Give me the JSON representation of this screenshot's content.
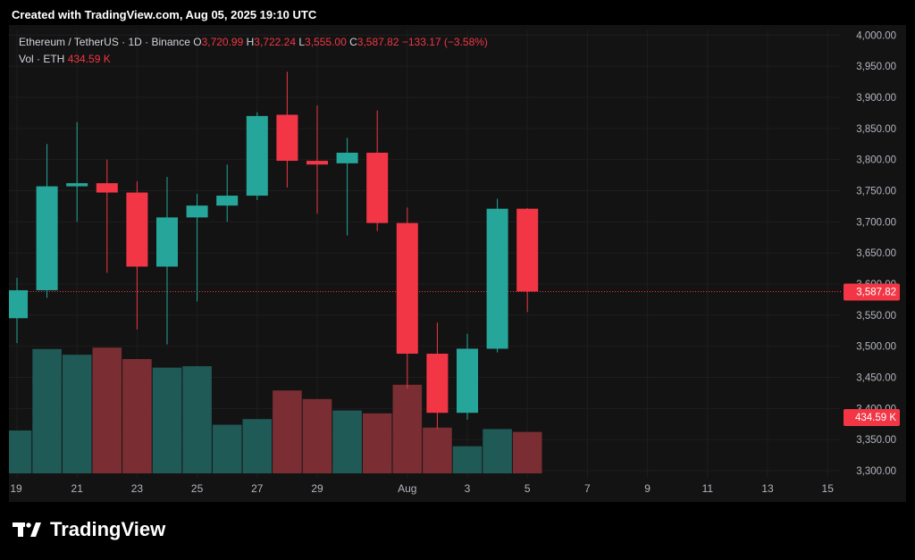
{
  "watermark": {
    "created": "Created with TradingView.com, Aug 05, 2025 19:10 UTC"
  },
  "legend": {
    "symbol": "Ethereum / TetherUS · 1D · Binance",
    "o_label": "O",
    "o_value": "3,720.99",
    "h_label": "H",
    "h_value": "3,722.24",
    "l_label": "L",
    "l_value": "3,555.00",
    "c_label": "C",
    "c_value": "3,587.82",
    "change": "−133.17 (−3.58%)",
    "vol_label": "Vol · ETH",
    "vol_value": "434.59 K"
  },
  "brand": {
    "name": "TradingView"
  },
  "colors": {
    "up": "#26a69a",
    "down": "#f23645",
    "vol_up": "#1f5a56",
    "vol_down": "#7a2e33",
    "badge": "#f23645",
    "grid": "#1e1e1e",
    "text": "#b2b5be"
  },
  "chart_data": {
    "type": "candlestick",
    "symbol": "ETH/USDT",
    "interval": "1D",
    "y_axis": {
      "ylim": [
        3300,
        4000
      ],
      "ticks": [
        4000,
        3950,
        3900,
        3850,
        3800,
        3750,
        3700,
        3650,
        3600,
        3550,
        3500,
        3450,
        3400,
        3350,
        3300
      ],
      "tick_labels": [
        "4,000.00",
        "3,950.00",
        "3,900.00",
        "3,850.00",
        "3,800.00",
        "3,750.00",
        "3,700.00",
        "3,650.00",
        "3,600.00",
        "3,550.00",
        "3,500.00",
        "3,450.00",
        "3,400.00",
        "3,350.00",
        "3,300.00"
      ]
    },
    "x_axis": {
      "tick_labels": [
        "19",
        "21",
        "23",
        "25",
        "27",
        "29",
        "Aug",
        "3",
        "5",
        "7",
        "9",
        "11",
        "13",
        "15"
      ],
      "tick_day_index": [
        0,
        2,
        4,
        6,
        8,
        10,
        13,
        15,
        17,
        19,
        21,
        23,
        25,
        27
      ]
    },
    "candles": [
      {
        "date": "Jul 19",
        "o": 3545,
        "h": 3610,
        "l": 3505,
        "c": 3590,
        "vol": 30
      },
      {
        "date": "Jul 20",
        "o": 3590,
        "h": 3825,
        "l": 3578,
        "c": 3757,
        "vol": 87
      },
      {
        "date": "Jul 21",
        "o": 3757,
        "h": 3860,
        "l": 3700,
        "c": 3762,
        "vol": 83
      },
      {
        "date": "Jul 22",
        "o": 3762,
        "h": 3800,
        "l": 3618,
        "c": 3747,
        "vol": 88
      },
      {
        "date": "Jul 23",
        "o": 3747,
        "h": 3765,
        "l": 3527,
        "c": 3628,
        "vol": 80
      },
      {
        "date": "Jul 24",
        "o": 3628,
        "h": 3772,
        "l": 3503,
        "c": 3707,
        "vol": 74
      },
      {
        "date": "Jul 25",
        "o": 3707,
        "h": 3745,
        "l": 3572,
        "c": 3726,
        "vol": 75
      },
      {
        "date": "Jul 26",
        "o": 3726,
        "h": 3792,
        "l": 3700,
        "c": 3742,
        "vol": 34
      },
      {
        "date": "Jul 27",
        "o": 3742,
        "h": 3876,
        "l": 3735,
        "c": 3870,
        "vol": 38
      },
      {
        "date": "Jul 28",
        "o": 3872,
        "h": 3941,
        "l": 3755,
        "c": 3798,
        "vol": 58
      },
      {
        "date": "Jul 29",
        "o": 3798,
        "h": 3887,
        "l": 3713,
        "c": 3792,
        "vol": 52
      },
      {
        "date": "Jul 30",
        "o": 3794,
        "h": 3835,
        "l": 3678,
        "c": 3811,
        "vol": 44
      },
      {
        "date": "Jul 31",
        "o": 3811,
        "h": 3879,
        "l": 3685,
        "c": 3698,
        "vol": 42
      },
      {
        "date": "Aug 1",
        "o": 3698,
        "h": 3723,
        "l": 3432,
        "c": 3488,
        "vol": 62
      },
      {
        "date": "Aug 2",
        "o": 3488,
        "h": 3538,
        "l": 3367,
        "c": 3393,
        "vol": 32
      },
      {
        "date": "Aug 3",
        "o": 3393,
        "h": 3520,
        "l": 3382,
        "c": 3496,
        "vol": 19
      },
      {
        "date": "Aug 4",
        "o": 3496,
        "h": 3737,
        "l": 3490,
        "c": 3721,
        "vol": 31
      },
      {
        "date": "Aug 5",
        "o": 3721,
        "h": 3722,
        "l": 3555,
        "c": 3588,
        "vol": 29
      }
    ],
    "volume_scale_max": 100,
    "last_price": {
      "value": 3587.82,
      "label": "3,587.82"
    },
    "last_volume": {
      "label": "434.59 K"
    },
    "grid": true
  }
}
